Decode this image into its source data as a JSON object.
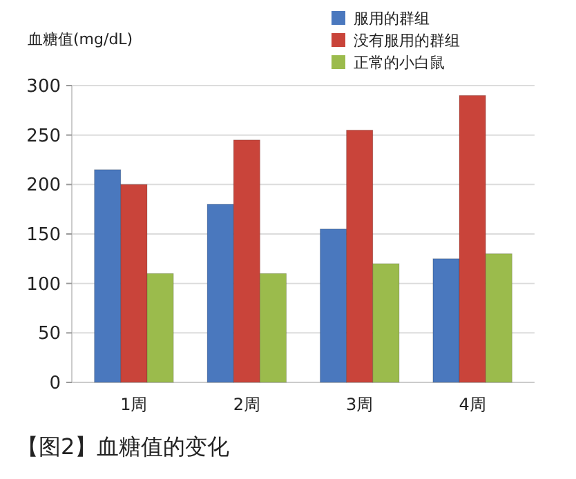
{
  "chart_data": {
    "type": "bar",
    "title": "【图2】血糖值的变化",
    "ylabel": "血糖值(mg/dL)",
    "categories": [
      "1周",
      "2周",
      "3周",
      "4周"
    ],
    "series": [
      {
        "name": "服用的群组",
        "color": "#4a78be",
        "values": [
          215,
          180,
          155,
          125
        ]
      },
      {
        "name": "没有服用的群组",
        "color": "#c9443a",
        "values": [
          200,
          245,
          255,
          290
        ]
      },
      {
        "name": "正常的小白鼠",
        "color": "#9bbb4c",
        "values": [
          110,
          110,
          120,
          130
        ]
      }
    ],
    "ylim": [
      0,
      300
    ],
    "yticks": [
      0,
      50,
      100,
      150,
      200,
      250,
      300
    ],
    "grid": "y",
    "legend": "top right"
  }
}
